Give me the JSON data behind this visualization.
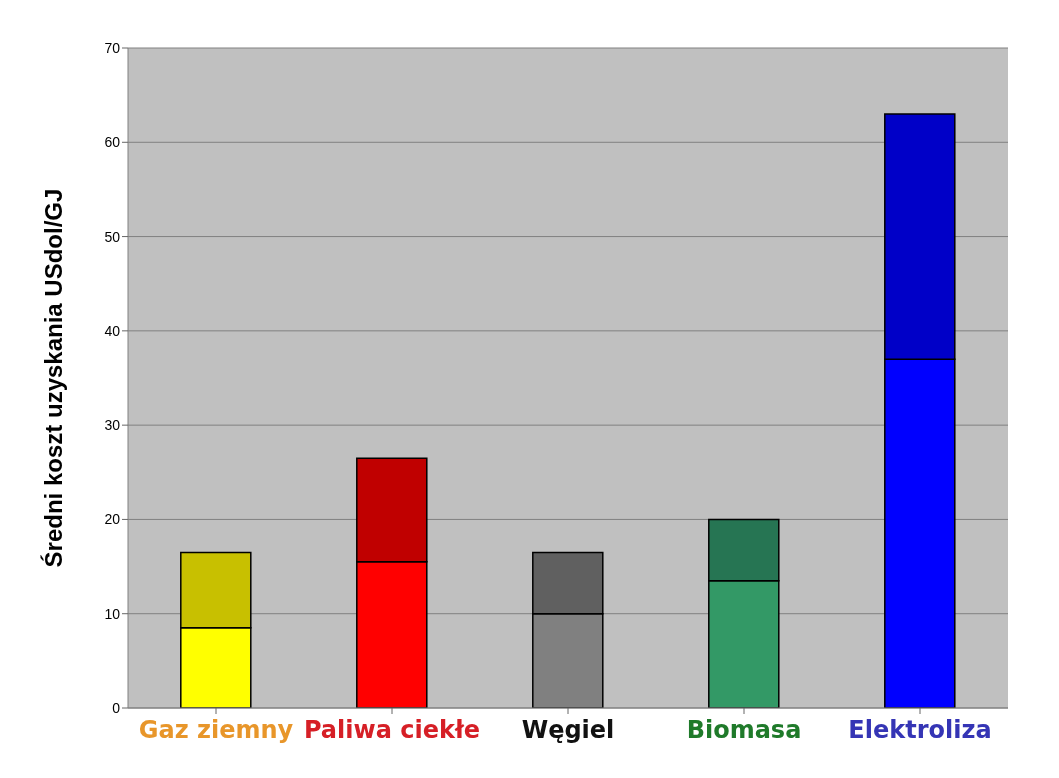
{
  "chart_data": {
    "type": "bar",
    "stacked": true,
    "ylabel": "Średni koszt uzyskania USdol/GJ",
    "categories": [
      "Gaz ziemny",
      "Paliwa ciekłe",
      "Węgiel",
      "Biomasa",
      "Elektroliza"
    ],
    "series": [
      {
        "colors": [
          "#ffff00",
          "#ff0000",
          "#808080",
          "#339966",
          "#0000ff"
        ],
        "values": [
          8.5,
          15.5,
          10,
          13.5,
          37
        ]
      },
      {
        "colors": [
          "#c8c000",
          "#c00000",
          "#606060",
          "#267553",
          "#0000c8"
        ],
        "values": [
          8,
          11,
          6.5,
          6.5,
          26
        ]
      }
    ],
    "ylim": [
      0,
      70
    ],
    "yticks": [
      0,
      10,
      20,
      30,
      40,
      50,
      60,
      70
    ],
    "grid": "y",
    "legend": false
  }
}
